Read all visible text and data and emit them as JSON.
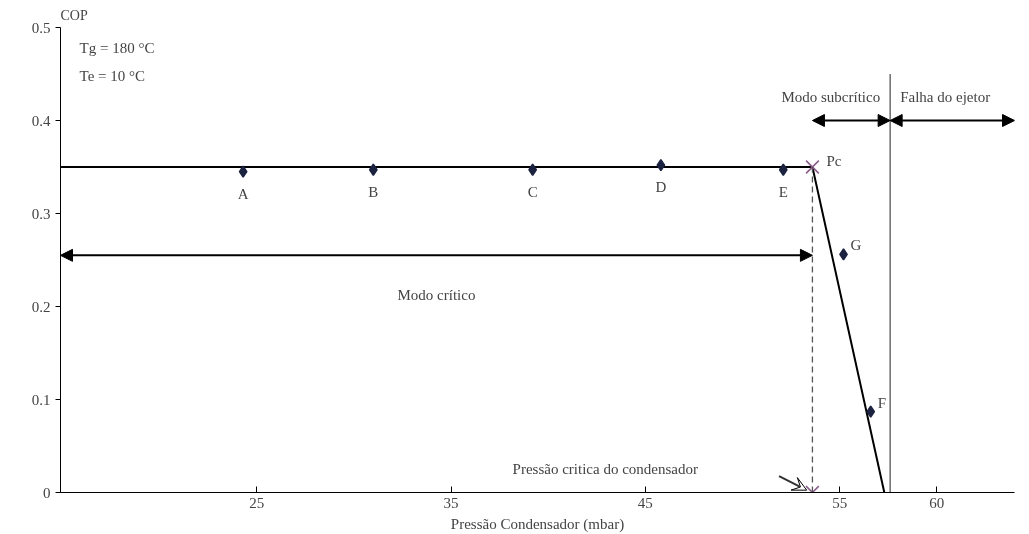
{
  "chart_data": {
    "type": "line",
    "ylabel": "COP",
    "xlabel": "Pressão Condensador (mbar)",
    "xlim": [
      14.9,
      64.0
    ],
    "ylim": [
      0,
      0.5
    ],
    "xticks": [
      25,
      35,
      45,
      55,
      60
    ],
    "yticks": [
      0,
      0.1,
      0.2,
      0.3,
      0.4,
      0.5
    ],
    "grid": false,
    "series": [
      {
        "x": [
          14.9,
          53.6,
          57.3
        ],
        "values": [
          0.35,
          0.35,
          0
        ],
        "color": "#000000",
        "line_style": "solid"
      },
      {
        "type": "scatter",
        "x": [
          24.3,
          31.0,
          39.2,
          45.8,
          52.1,
          55.2,
          56.6
        ],
        "values": [
          0.345,
          0.347,
          0.347,
          0.352,
          0.347,
          0.256,
          0.087
        ],
        "color": "#1c2340",
        "marker": "diamond"
      },
      {
        "type": "scatter",
        "x": [
          53.6,
          53.6
        ],
        "values": [
          0.35,
          0
        ],
        "color": "#8a5a8a",
        "marker": "cross"
      },
      {
        "x": [
          53.6,
          53.6
        ],
        "values": [
          0,
          0.35
        ],
        "color": "#555555",
        "line_style": "dashed"
      },
      {
        "x": [
          57.6,
          57.6
        ],
        "values": [
          0,
          0.45
        ],
        "color": "#555555",
        "line_style": "solid"
      }
    ],
    "annotations": [
      "Tg = 180 °C",
      "Te = 10 °C",
      "A",
      "B",
      "C",
      "D",
      "E",
      "G",
      "F",
      "Pc",
      "Modo crítico",
      "Modo subcrítico",
      "Falha do ejetor",
      "Pressão critica do condensador"
    ]
  }
}
